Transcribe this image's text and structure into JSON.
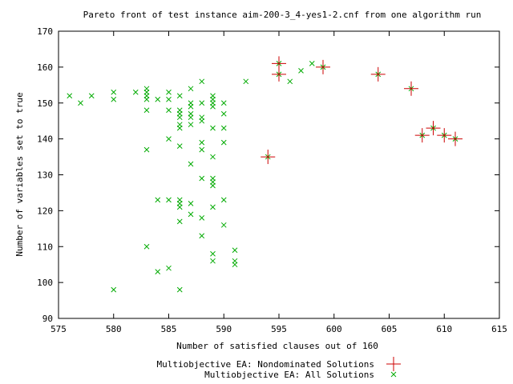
{
  "chart_data": {
    "type": "scatter",
    "title": "Pareto front of test instance aim-200-3_4-yes1-2.cnf from one algorithm run",
    "xlabel": "Number of satisfied clauses out of 160",
    "ylabel": "Number of variables set to true",
    "xlim": [
      575,
      615
    ],
    "ylim": [
      90,
      170
    ],
    "xticks": [
      575,
      580,
      585,
      590,
      595,
      600,
      605,
      610,
      615
    ],
    "yticks": [
      90,
      100,
      110,
      120,
      130,
      140,
      150,
      160,
      170
    ],
    "grid": false,
    "legend_position": "bottom-center",
    "series": [
      {
        "name": "Multiobjective EA: Nondominated Solutions",
        "marker": "plus",
        "color": "#cc0000",
        "points": [
          [
            594,
            135
          ],
          [
            595,
            161
          ],
          [
            595,
            158
          ],
          [
            599,
            160
          ],
          [
            604,
            158
          ],
          [
            607,
            154
          ],
          [
            608,
            141
          ],
          [
            609,
            143
          ],
          [
            610,
            141
          ],
          [
            611,
            140
          ]
        ]
      },
      {
        "name": "Multiobjective EA: All Solutions",
        "marker": "cross",
        "color": "#00aa00",
        "points": [
          [
            576,
            152
          ],
          [
            577,
            150
          ],
          [
            578,
            152
          ],
          [
            580,
            153
          ],
          [
            580,
            151
          ],
          [
            580,
            98
          ],
          [
            582,
            153
          ],
          [
            583,
            154
          ],
          [
            583,
            153
          ],
          [
            583,
            152
          ],
          [
            583,
            151
          ],
          [
            583,
            148
          ],
          [
            583,
            137
          ],
          [
            583,
            110
          ],
          [
            584,
            151
          ],
          [
            584,
            123
          ],
          [
            584,
            103
          ],
          [
            585,
            153
          ],
          [
            585,
            151
          ],
          [
            585,
            148
          ],
          [
            585,
            140
          ],
          [
            585,
            123
          ],
          [
            585,
            104
          ],
          [
            586,
            152
          ],
          [
            586,
            148
          ],
          [
            586,
            147
          ],
          [
            586,
            146
          ],
          [
            586,
            144
          ],
          [
            586,
            143
          ],
          [
            586,
            138
          ],
          [
            586,
            123
          ],
          [
            586,
            122
          ],
          [
            586,
            121
          ],
          [
            586,
            117
          ],
          [
            586,
            98
          ],
          [
            587,
            154
          ],
          [
            587,
            150
          ],
          [
            587,
            149
          ],
          [
            587,
            147
          ],
          [
            587,
            146
          ],
          [
            587,
            144
          ],
          [
            587,
            133
          ],
          [
            587,
            122
          ],
          [
            587,
            119
          ],
          [
            588,
            156
          ],
          [
            588,
            150
          ],
          [
            588,
            146
          ],
          [
            588,
            145
          ],
          [
            588,
            139
          ],
          [
            588,
            137
          ],
          [
            588,
            129
          ],
          [
            588,
            118
          ],
          [
            588,
            113
          ],
          [
            589,
            152
          ],
          [
            589,
            151
          ],
          [
            589,
            150
          ],
          [
            589,
            149
          ],
          [
            589,
            143
          ],
          [
            589,
            135
          ],
          [
            589,
            129
          ],
          [
            589,
            128
          ],
          [
            589,
            127
          ],
          [
            589,
            121
          ],
          [
            589,
            108
          ],
          [
            589,
            106
          ],
          [
            590,
            150
          ],
          [
            590,
            147
          ],
          [
            590,
            143
          ],
          [
            590,
            139
          ],
          [
            590,
            123
          ],
          [
            590,
            116
          ],
          [
            591,
            109
          ],
          [
            591,
            106
          ],
          [
            591,
            105
          ],
          [
            592,
            156
          ],
          [
            594,
            135
          ],
          [
            595,
            161
          ],
          [
            595,
            158
          ],
          [
            596,
            156
          ],
          [
            597,
            159
          ],
          [
            598,
            161
          ],
          [
            599,
            160
          ],
          [
            604,
            158
          ],
          [
            607,
            154
          ],
          [
            608,
            141
          ],
          [
            609,
            143
          ],
          [
            610,
            141
          ],
          [
            611,
            140
          ]
        ]
      }
    ]
  }
}
